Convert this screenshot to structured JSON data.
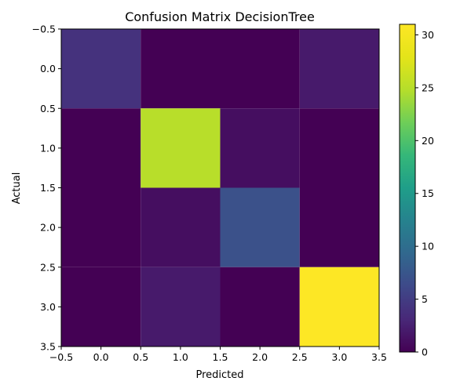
{
  "chart_data": {
    "type": "heatmap",
    "title": "Confusion Matrix DecisionTree",
    "xlabel": "Predicted",
    "ylabel": "Actual",
    "x_ticks": [
      "−0.5",
      "0.0",
      "0.5",
      "1.0",
      "1.5",
      "2.0",
      "2.5",
      "3.0",
      "3.5"
    ],
    "y_ticks": [
      "−0.5",
      "0.0",
      "0.5",
      "1.0",
      "1.5",
      "2.0",
      "2.5",
      "3.0",
      "3.5"
    ],
    "x_range": [
      -0.5,
      3.5
    ],
    "y_range": [
      -0.5,
      3.5
    ],
    "y_inverted": true,
    "matrix": [
      [
        4,
        0,
        0,
        2
      ],
      [
        0,
        25,
        1,
        0
      ],
      [
        0,
        1,
        7,
        0
      ],
      [
        0,
        2,
        0,
        31
      ]
    ],
    "colormap": "viridis",
    "vmin": 0,
    "vmax": 31,
    "colorbar_ticks": [
      "0",
      "5",
      "10",
      "15",
      "20",
      "25",
      "30"
    ],
    "colorbar_tick_values": [
      0,
      5,
      10,
      15,
      20,
      25,
      30
    ]
  }
}
